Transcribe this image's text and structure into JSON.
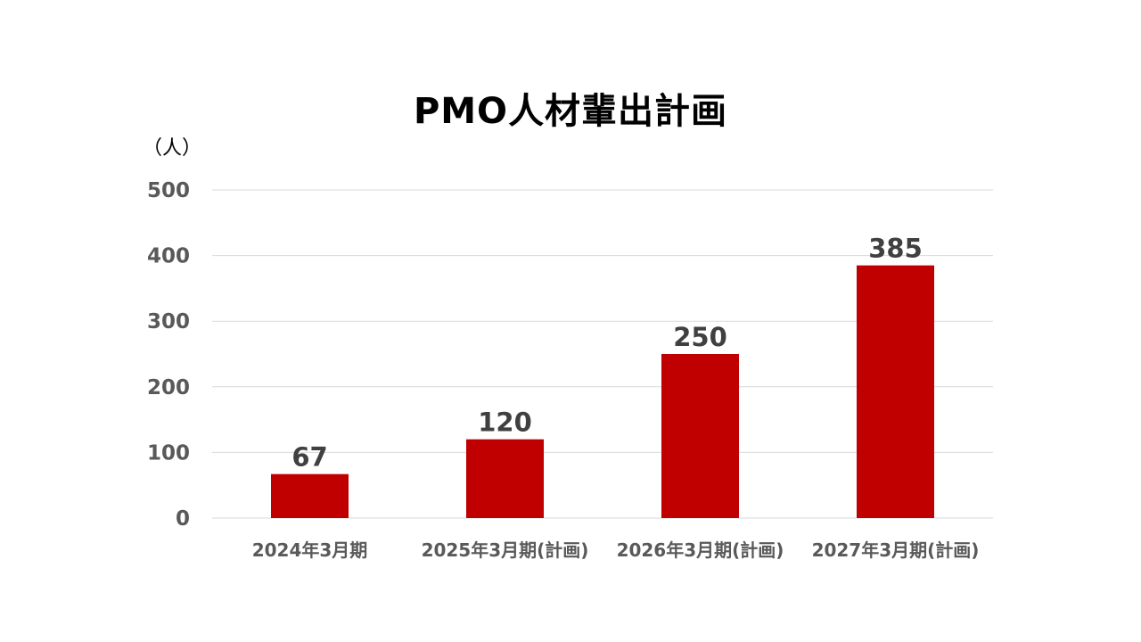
{
  "chart_data": {
    "type": "bar",
    "title": "PMO人材輩出計画",
    "ylabel": "（人）",
    "xlabel": "",
    "categories": [
      "2024年3月期",
      "2025年3月期(計画)",
      "2026年3月期(計画)",
      "2027年3月期(計画)"
    ],
    "values": [
      67,
      120,
      250,
      385
    ],
    "data_labels": [
      "67",
      "120",
      "250",
      "385"
    ],
    "yticks": [
      "0",
      "100",
      "200",
      "300",
      "400",
      "500"
    ],
    "ylim": [
      0,
      500
    ],
    "grid": true,
    "legend": "none",
    "bar_color": "#C00000"
  }
}
